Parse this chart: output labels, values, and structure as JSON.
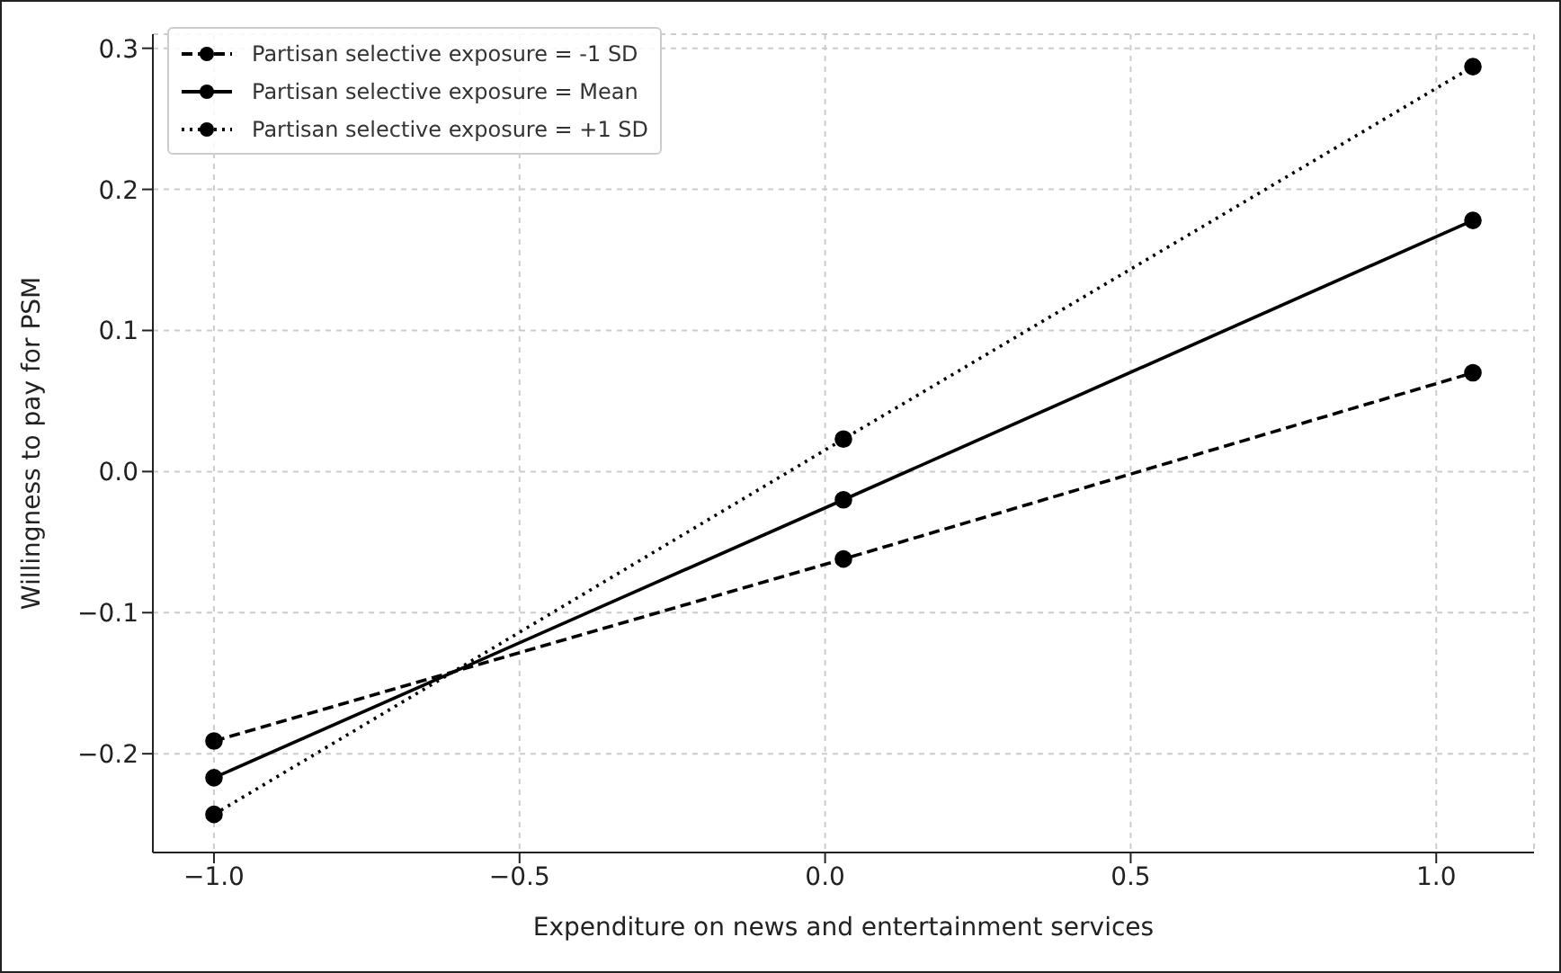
{
  "chart_data": {
    "type": "line",
    "xlabel": "Expenditure on news and entertainment services",
    "ylabel": "Willingness to pay for PSM",
    "x": [
      -1.0,
      0.03,
      1.06
    ],
    "series": [
      {
        "name": "Partisan selective exposure = -1 SD",
        "color": "#000000",
        "line_style": "dashed",
        "values": [
          -0.191,
          -0.062,
          0.07
        ]
      },
      {
        "name": "Partisan selective exposure = Mean",
        "color": "#000000",
        "line_style": "solid",
        "values": [
          -0.217,
          -0.02,
          0.178
        ]
      },
      {
        "name": "Partisan selective exposure = +1 SD",
        "color": "#000000",
        "line_style": "dotted",
        "values": [
          -0.243,
          0.023,
          0.287
        ]
      }
    ],
    "xlim": [
      -1.1,
      1.16
    ],
    "ylim": [
      -0.27,
      0.31
    ],
    "xticks": [
      {
        "value": -1.0,
        "label": "−1.0"
      },
      {
        "value": -0.5,
        "label": "−0.5"
      },
      {
        "value": 0.0,
        "label": "0.0"
      },
      {
        "value": 0.5,
        "label": "0.5"
      },
      {
        "value": 1.0,
        "label": "1.0"
      }
    ],
    "yticks": [
      {
        "value": -0.2,
        "label": "−0.2"
      },
      {
        "value": -0.1,
        "label": "−0.1"
      },
      {
        "value": 0.0,
        "label": "0.0"
      },
      {
        "value": 0.1,
        "label": "0.1"
      },
      {
        "value": 0.2,
        "label": "0.2"
      },
      {
        "value": 0.3,
        "label": "0.3"
      }
    ],
    "grid": true,
    "legend": "top left",
    "marker": "circle"
  }
}
